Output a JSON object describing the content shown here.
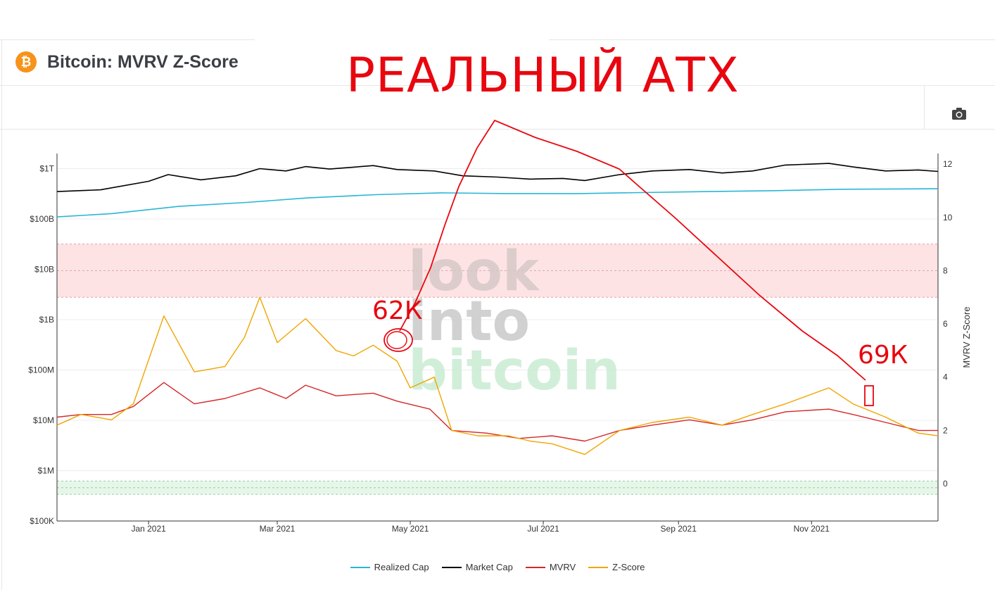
{
  "header": {
    "title": "Bitcoin: MVRV Z-Score",
    "icon": "bitcoin-icon",
    "icon_glyph": "₿"
  },
  "overlay": {
    "headline": "РЕАЛЬНЫЙ АТХ",
    "label_left": "62К",
    "label_right": "69К",
    "color": "#e8070f"
  },
  "toolbar": {
    "camera_icon": "camera-icon"
  },
  "watermark": {
    "line1": "look",
    "line2": "into",
    "line3": "bitcoin"
  },
  "colors": {
    "realized_cap": "#29b6d6",
    "market_cap": "#000000",
    "mvrv": "#d62728",
    "zscore": "#f0a500",
    "red_band": "#fde3e4",
    "green_band": "#e6f7ea"
  },
  "chart_data": {
    "type": "line",
    "title": "Bitcoin: MVRV Z-Score",
    "x_ticks": [
      "Jan 2021",
      "Mar 2021",
      "May 2021",
      "Jul 2021",
      "Sep 2021",
      "Nov 2021"
    ],
    "x_range": [
      "2020-11-20",
      "2021-12-29"
    ],
    "y_left": {
      "scale": "log",
      "ticks": [
        "$100K",
        "$1M",
        "$10M",
        "$100M",
        "$1B",
        "$10B",
        "$100B",
        "$1T"
      ],
      "range": [
        100000,
        2000000000000
      ]
    },
    "y_right": {
      "label": "MVRV Z-Score",
      "ticks": [
        "0",
        "2",
        "4",
        "6",
        "8",
        "10",
        "12"
      ],
      "range": [
        -1.4,
        12.4
      ]
    },
    "bands": [
      {
        "axis": "right",
        "from": 7.0,
        "to": 9.0,
        "color": "red"
      },
      {
        "axis": "right",
        "from": -0.4,
        "to": 0.1,
        "color": "green"
      }
    ],
    "legend": [
      "Realized Cap",
      "Market Cap",
      "MVRV",
      "Z-Score"
    ],
    "legend_position": "bottom",
    "series": [
      {
        "name": "Realized Cap",
        "axis": "left",
        "x": [
          "2020-11-20",
          "2020-12-15",
          "2021-01-15",
          "2021-02-15",
          "2021-03-15",
          "2021-04-15",
          "2021-05-15",
          "2021-06-15",
          "2021-07-15",
          "2021-08-15",
          "2021-09-15",
          "2021-10-15",
          "2021-11-15",
          "2021-12-29"
        ],
        "y": [
          110000000000,
          128000000000,
          178000000000,
          213000000000,
          262000000000,
          304000000000,
          330000000000,
          320000000000,
          318000000000,
          335000000000,
          350000000000,
          365000000000,
          390000000000,
          398000000000
        ]
      },
      {
        "name": "Market Cap",
        "axis": "left",
        "x": [
          "2020-11-20",
          "2020-12-10",
          "2021-01-01",
          "2021-01-10",
          "2021-01-25",
          "2021-02-10",
          "2021-02-21",
          "2021-03-05",
          "2021-03-14",
          "2021-03-25",
          "2021-04-14",
          "2021-04-25",
          "2021-05-12",
          "2021-05-25",
          "2021-06-10",
          "2021-06-25",
          "2021-07-10",
          "2021-07-20",
          "2021-08-05",
          "2021-08-20",
          "2021-09-06",
          "2021-09-21",
          "2021-10-05",
          "2021-10-20",
          "2021-11-09",
          "2021-11-20",
          "2021-12-05",
          "2021-12-20",
          "2021-12-29"
        ],
        "y": [
          350000000000,
          380000000000,
          560000000000,
          760000000000,
          600000000000,
          720000000000,
          1000000000000,
          900000000000,
          1100000000000,
          980000000000,
          1150000000000,
          960000000000,
          900000000000,
          720000000000,
          680000000000,
          620000000000,
          640000000000,
          580000000000,
          760000000000,
          900000000000,
          960000000000,
          820000000000,
          900000000000,
          1180000000000,
          1270000000000,
          1080000000000,
          900000000000,
          940000000000,
          880000000000
        ]
      },
      {
        "name": "MVRV",
        "axis": "right",
        "x": [
          "2020-11-20",
          "2020-12-01",
          "2020-12-15",
          "2020-12-25",
          "2021-01-08",
          "2021-01-22",
          "2021-02-05",
          "2021-02-21",
          "2021-03-05",
          "2021-03-14",
          "2021-03-28",
          "2021-04-14",
          "2021-04-25",
          "2021-05-10",
          "2021-05-20",
          "2021-06-05",
          "2021-06-20",
          "2021-07-05",
          "2021-07-20",
          "2021-08-05",
          "2021-08-20",
          "2021-09-06",
          "2021-09-21",
          "2021-10-05",
          "2021-10-20",
          "2021-11-09",
          "2021-11-20",
          "2021-12-05",
          "2021-12-20",
          "2021-12-29"
        ],
        "y": [
          2.5,
          2.6,
          2.6,
          2.9,
          3.8,
          3.0,
          3.2,
          3.6,
          3.2,
          3.7,
          3.3,
          3.4,
          3.1,
          2.8,
          2.0,
          1.9,
          1.7,
          1.8,
          1.6,
          2.0,
          2.2,
          2.4,
          2.2,
          2.4,
          2.7,
          2.8,
          2.6,
          2.3,
          2.0,
          2.0
        ]
      },
      {
        "name": "Z-Score",
        "axis": "right",
        "x": [
          "2020-11-20",
          "2020-12-01",
          "2020-12-15",
          "2020-12-25",
          "2021-01-08",
          "2021-01-22",
          "2021-02-05",
          "2021-02-14",
          "2021-02-21",
          "2021-03-01",
          "2021-03-14",
          "2021-03-28",
          "2021-04-05",
          "2021-04-14",
          "2021-04-25",
          "2021-05-01",
          "2021-05-12",
          "2021-05-20",
          "2021-06-01",
          "2021-06-15",
          "2021-06-25",
          "2021-07-05",
          "2021-07-20",
          "2021-08-05",
          "2021-08-20",
          "2021-09-06",
          "2021-09-21",
          "2021-10-05",
          "2021-10-20",
          "2021-11-09",
          "2021-11-20",
          "2021-12-05",
          "2021-12-20",
          "2021-12-29"
        ],
        "y": [
          2.2,
          2.6,
          2.4,
          3.0,
          6.3,
          4.2,
          4.4,
          5.5,
          7.0,
          5.3,
          6.2,
          5.0,
          4.8,
          5.2,
          4.6,
          3.6,
          4.0,
          2.0,
          1.8,
          1.8,
          1.6,
          1.5,
          1.1,
          2.0,
          2.3,
          2.5,
          2.2,
          2.6,
          3.0,
          3.6,
          3.0,
          2.5,
          1.9,
          1.8
        ]
      }
    ]
  }
}
